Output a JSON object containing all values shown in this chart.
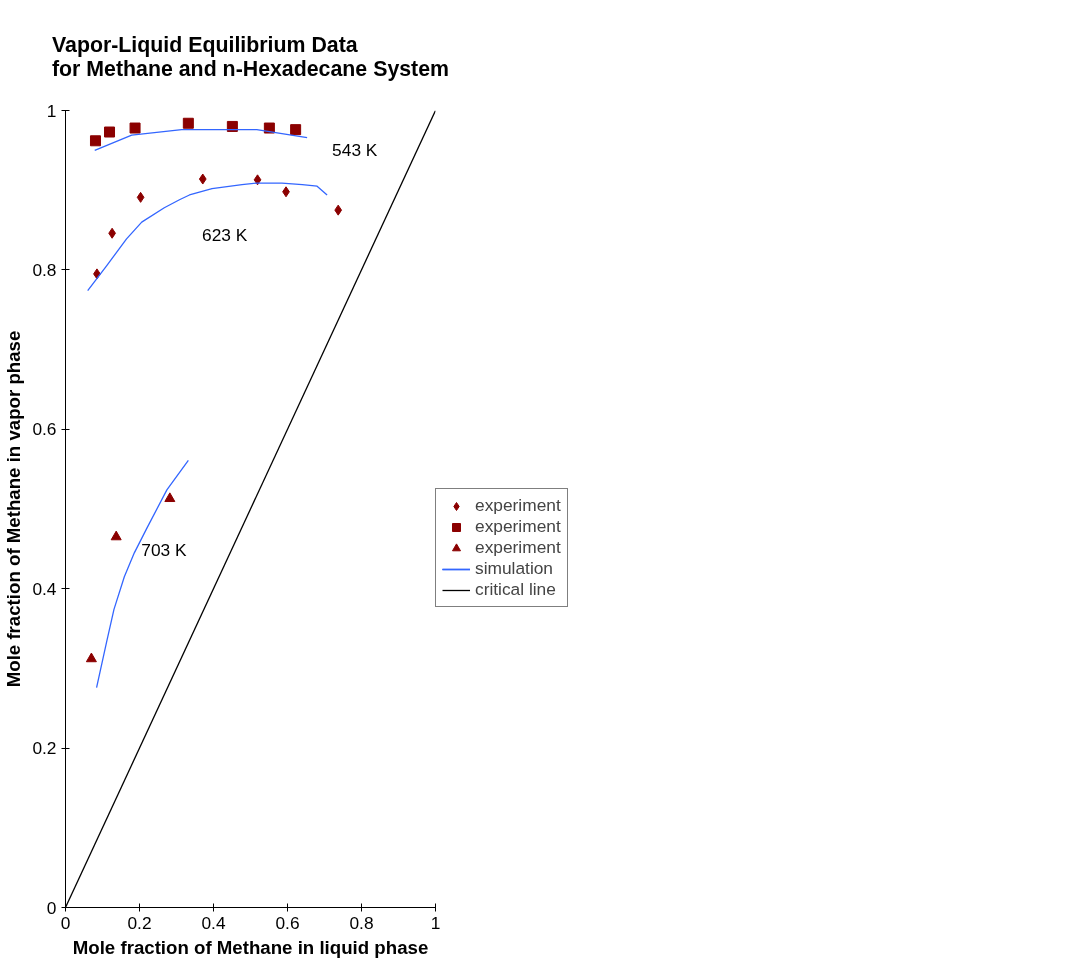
{
  "chart_data": {
    "type": "scatter",
    "title": "Vapor-Liquid Equilibrium Data\nfor Methane and n-Hexadecane System",
    "xlabel": "Mole fraction of Methane in liquid phase",
    "ylabel": "Mole fraction of Methane in vapor phase",
    "xlim": [
      0,
      1
    ],
    "ylim": [
      0,
      1
    ],
    "xticks": [
      0,
      0.2,
      0.4,
      0.6,
      0.8,
      1
    ],
    "yticks": [
      0,
      0.2,
      0.4,
      0.6,
      0.8,
      1
    ],
    "grid": false,
    "legend": "right",
    "series": [
      {
        "name": "experiment",
        "marker": "diamond",
        "color": "#8b0000",
        "x": [
          0.085,
          0.126,
          0.203,
          0.371,
          0.519,
          0.596,
          0.737
        ],
        "values": [
          0.795,
          0.846,
          0.891,
          0.914,
          0.913,
          0.898,
          0.875
        ]
      },
      {
        "name": "experiment",
        "marker": "square",
        "color": "#8b0000",
        "x": [
          0.081,
          0.119,
          0.188,
          0.332,
          0.451,
          0.551,
          0.622
        ],
        "values": [
          0.962,
          0.973,
          0.978,
          0.984,
          0.98,
          0.978,
          0.976
        ]
      },
      {
        "name": "experiment",
        "marker": "triangle",
        "color": "#8b0000",
        "x": [
          0.07,
          0.137,
          0.282
        ],
        "values": [
          0.312,
          0.465,
          0.513
        ]
      },
      {
        "name": "simulation",
        "type": "line",
        "color": "#3366ff",
        "x": [
          0.079,
          0.179,
          0.314,
          0.517,
          0.653
        ],
        "values": [
          0.95,
          0.969,
          0.976,
          0.976,
          0.966
        ]
      },
      {
        "type": "line",
        "color": "#3366ff",
        "x": [
          0.06,
          0.111,
          0.165,
          0.206,
          0.267,
          0.308,
          0.335,
          0.396,
          0.477,
          0.518,
          0.585,
          0.64,
          0.68,
          0.707
        ],
        "values": [
          0.774,
          0.805,
          0.839,
          0.86,
          0.878,
          0.888,
          0.894,
          0.902,
          0.907,
          0.909,
          0.909,
          0.907,
          0.905,
          0.894
        ]
      },
      {
        "type": "line",
        "color": "#3366ff",
        "x": [
          0.084,
          0.111,
          0.131,
          0.159,
          0.186,
          0.22,
          0.274,
          0.332
        ],
        "values": [
          0.276,
          0.333,
          0.374,
          0.415,
          0.445,
          0.476,
          0.524,
          0.561
        ]
      },
      {
        "name": "critical line",
        "type": "line",
        "color": "#000000",
        "x": [
          0,
          1
        ],
        "values": [
          0,
          1
        ]
      }
    ],
    "annotations": [
      "543 K",
      "623 K",
      "703 K"
    ]
  }
}
